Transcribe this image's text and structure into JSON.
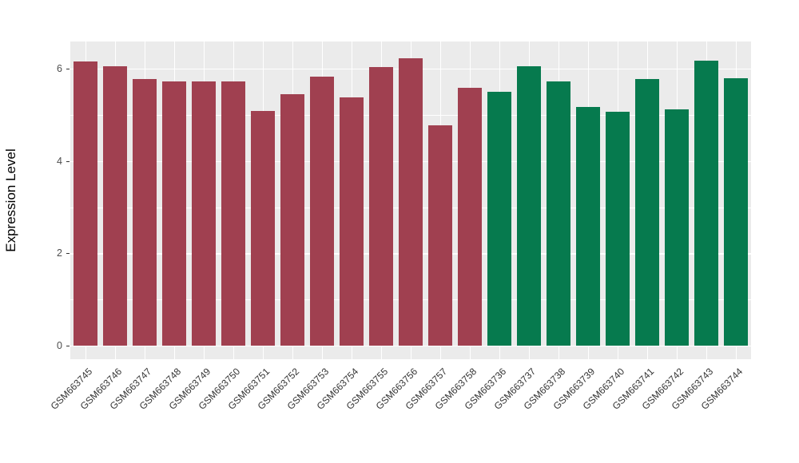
{
  "chart_data": {
    "type": "bar",
    "title": "",
    "xlabel": "",
    "ylabel": "Expression Level",
    "ylim": [
      0,
      6.53
    ],
    "yticks": [
      0,
      2,
      4,
      6
    ],
    "y_minor_ticks": [
      1,
      3,
      5
    ],
    "grid": true,
    "legend_position": "none",
    "panel_background": "#EBEBEB",
    "gridline_color": "#FFFFFF",
    "group_colors": {
      "group1": "#A04050",
      "group2": "#067A4E"
    },
    "categories": [
      "GSM663745",
      "GSM663746",
      "GSM663747",
      "GSM663748",
      "GSM663749",
      "GSM663750",
      "GSM663751",
      "GSM663752",
      "GSM663753",
      "GSM663754",
      "GSM663755",
      "GSM663756",
      "GSM663757",
      "GSM663758",
      "GSM663736",
      "GSM663737",
      "GSM663738",
      "GSM663739",
      "GSM663740",
      "GSM663741",
      "GSM663742",
      "GSM663743",
      "GSM663744"
    ],
    "values": [
      6.15,
      6.05,
      5.78,
      5.72,
      5.72,
      5.72,
      5.08,
      5.45,
      5.82,
      5.38,
      6.03,
      6.23,
      4.78,
      5.58,
      5.5,
      6.05,
      5.73,
      5.17,
      5.06,
      5.78,
      5.12,
      6.17,
      5.8
    ],
    "bar_groups": [
      "group1",
      "group1",
      "group1",
      "group1",
      "group1",
      "group1",
      "group1",
      "group1",
      "group1",
      "group1",
      "group1",
      "group1",
      "group1",
      "group1",
      "group2",
      "group2",
      "group2",
      "group2",
      "group2",
      "group2",
      "group2",
      "group2",
      "group2"
    ]
  }
}
